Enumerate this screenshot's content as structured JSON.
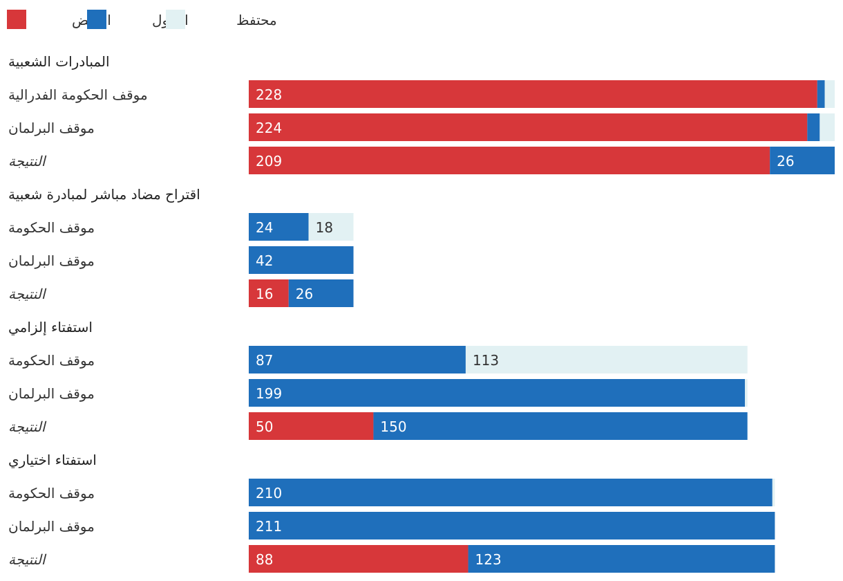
{
  "legend": [
    {
      "key": "reject",
      "label": "الرفض",
      "color": "#d7373a"
    },
    {
      "key": "accept",
      "label": "القبول",
      "color": "#1f6fbb"
    },
    {
      "key": "abstain",
      "label": "محتفظ",
      "color": "#e2f1f3"
    }
  ],
  "chart_data": {
    "type": "bar",
    "orientation": "horizontal",
    "stacked": true,
    "series_order": [
      "reject",
      "accept",
      "abstain"
    ],
    "xlim": [
      0,
      235
    ],
    "groups": [
      {
        "title": "المبادرات الشعبية",
        "rows": [
          {
            "label": "موقف الحكومة الفدرالية",
            "result": false,
            "reject": 228,
            "accept": 3,
            "abstain": 4,
            "labels": {
              "reject": "228"
            }
          },
          {
            "label": "موقف البرلمان",
            "result": false,
            "reject": 224,
            "accept": 5,
            "abstain": 6,
            "labels": {
              "reject": "224"
            }
          },
          {
            "label": "النتيجة",
            "result": true,
            "reject": 209,
            "accept": 26,
            "abstain": 0,
            "labels": {
              "reject": "209",
              "accept": "26"
            }
          }
        ]
      },
      {
        "title": "اقتراح مضاد مباشر لمبادرة شعبية",
        "rows": [
          {
            "label": "موقف الحكومة",
            "result": false,
            "reject": 0,
            "accept": 24,
            "abstain": 18,
            "labels": {
              "accept": "24",
              "abstain": "18"
            }
          },
          {
            "label": "موقف البرلمان",
            "result": false,
            "reject": 0,
            "accept": 42,
            "abstain": 0,
            "labels": {
              "accept": "42"
            }
          },
          {
            "label": "النتيجة",
            "result": true,
            "reject": 16,
            "accept": 26,
            "abstain": 0,
            "labels": {
              "reject": "16",
              "accept": "26"
            }
          }
        ]
      },
      {
        "title": "استفتاء إلزامي",
        "rows": [
          {
            "label": "موقف الحكومة",
            "result": false,
            "reject": 0,
            "accept": 87,
            "abstain": 113,
            "labels": {
              "accept": "87",
              "abstain": "113"
            }
          },
          {
            "label": "موقف البرلمان",
            "result": false,
            "reject": 0,
            "accept": 199,
            "abstain": 1,
            "labels": {
              "accept": "199"
            }
          },
          {
            "label": "النتيجة",
            "result": true,
            "reject": 50,
            "accept": 150,
            "abstain": 0,
            "labels": {
              "reject": "50",
              "accept": "150"
            }
          }
        ]
      },
      {
        "title": "استفتاء اختياري",
        "rows": [
          {
            "label": "موقف الحكومة",
            "result": false,
            "reject": 0,
            "accept": 210,
            "abstain": 1,
            "labels": {
              "accept": "210"
            }
          },
          {
            "label": "موقف البرلمان",
            "result": false,
            "reject": 0,
            "accept": 211,
            "abstain": 0,
            "labels": {
              "accept": "211"
            }
          },
          {
            "label": "النتيجة",
            "result": true,
            "reject": 88,
            "accept": 123,
            "abstain": 0,
            "labels": {
              "reject": "88",
              "accept": "123"
            }
          }
        ]
      }
    ]
  }
}
